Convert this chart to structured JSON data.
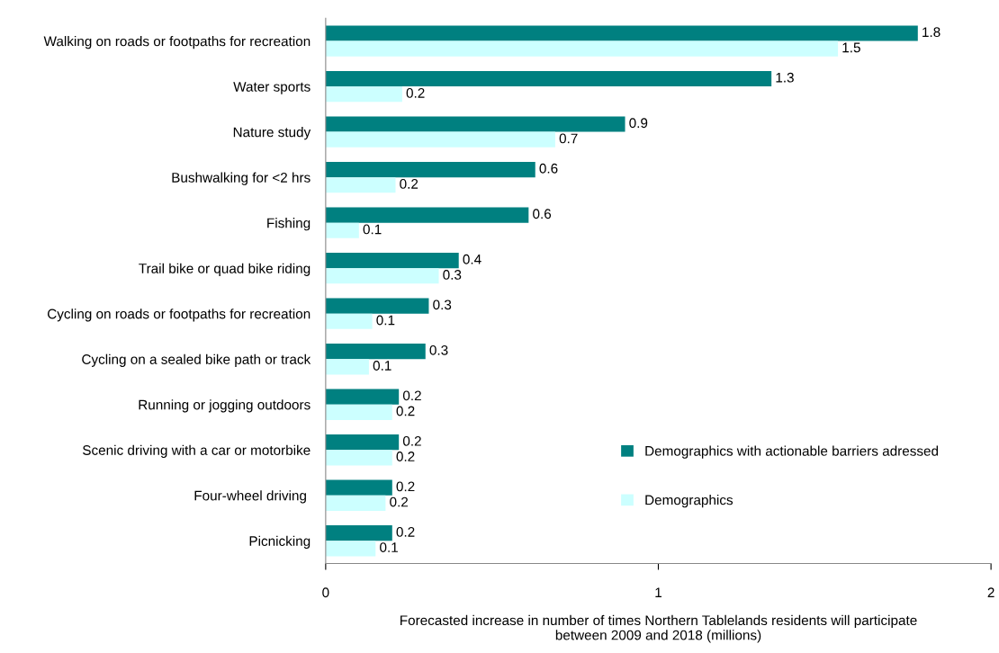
{
  "chart_data": {
    "type": "bar",
    "orientation": "horizontal",
    "xlabel": "Forecasted increase in number of times Northern Tablelands residents will participate\nbetween 2009 and 2018 (millions)",
    "categories": [
      "Walking on roads or footpaths for recreation",
      "Water sports",
      "Nature study",
      "Bushwalking for <2 hrs",
      "Fishing",
      "Trail bike or quad bike riding",
      "Cycling on roads or footpaths for recreation",
      "Cycling on a sealed bike path or track",
      "Running or jogging outdoors",
      "Scenic driving with a car or motorbike",
      "Four-wheel driving ",
      "Picnicking"
    ],
    "series": [
      {
        "name": "Demographics with actionable barriers adressed",
        "color": "#008080",
        "values": [
          1.78,
          1.34,
          0.9,
          0.63,
          0.61,
          0.4,
          0.31,
          0.3,
          0.22,
          0.22,
          0.2,
          0.2
        ],
        "value_labels": [
          "1.8",
          "1.3",
          "0.9",
          "0.6",
          "0.6",
          "0.4",
          "0.3",
          "0.3",
          "0.2",
          "0.2",
          "0.2",
          "0.2"
        ]
      },
      {
        "name": "Demographics",
        "color": "#ccffff",
        "values": [
          1.54,
          0.23,
          0.69,
          0.21,
          0.1,
          0.34,
          0.14,
          0.13,
          0.2,
          0.2,
          0.18,
          0.15
        ],
        "value_labels": [
          "1.5",
          "0.2",
          "0.7",
          "0.2",
          "0.1",
          "0.3",
          "0.1",
          "0.1",
          "0.2",
          "0.2",
          "0.2",
          "0.1"
        ]
      }
    ],
    "xlim": [
      0,
      2
    ],
    "xticks": [
      0,
      1,
      2
    ],
    "grid": false,
    "legend": "bottom right"
  }
}
